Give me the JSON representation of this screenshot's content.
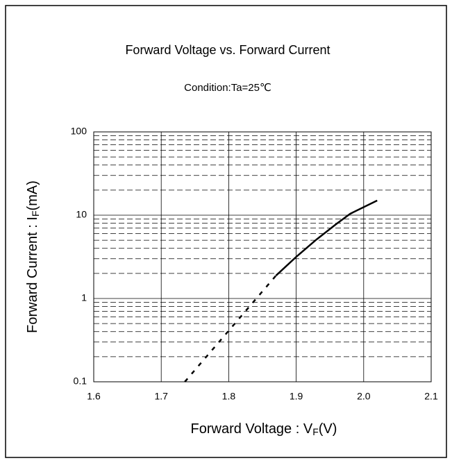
{
  "chart_data": {
    "type": "line",
    "title": "Forward Voltage vs. Forward Current",
    "subtitle": "Condition:Ta=25℃",
    "x_label": {
      "main": "Forward Voltage : V",
      "sub": "F",
      "end": "(V)"
    },
    "y_label": {
      "main": "Forward Current : I",
      "sub": "F",
      "end": "(mA)"
    },
    "log_y": true,
    "grid": true,
    "minor_grid": true,
    "xlim": [
      1.6,
      2.1
    ],
    "xticks": [
      1.6,
      1.7,
      1.8,
      1.9,
      {
        "value": 2.0,
        "label": "2.0"
      },
      2.1
    ],
    "ylim": [
      0.1,
      100
    ],
    "yticks": [
      0.1,
      1,
      10,
      100
    ],
    "series": [
      {
        "color": "#000",
        "dashed": true,
        "x": [
          1.735,
          1.87
        ],
        "values": [
          0.1,
          1.88
        ]
      },
      {
        "color": "#000",
        "dashed": false,
        "x": [
          1.87,
          1.9,
          1.93,
          1.96,
          1.98,
          2.02
        ],
        "values": [
          1.88,
          3.16,
          5.1,
          7.9,
          10.4,
          15
        ]
      }
    ]
  }
}
